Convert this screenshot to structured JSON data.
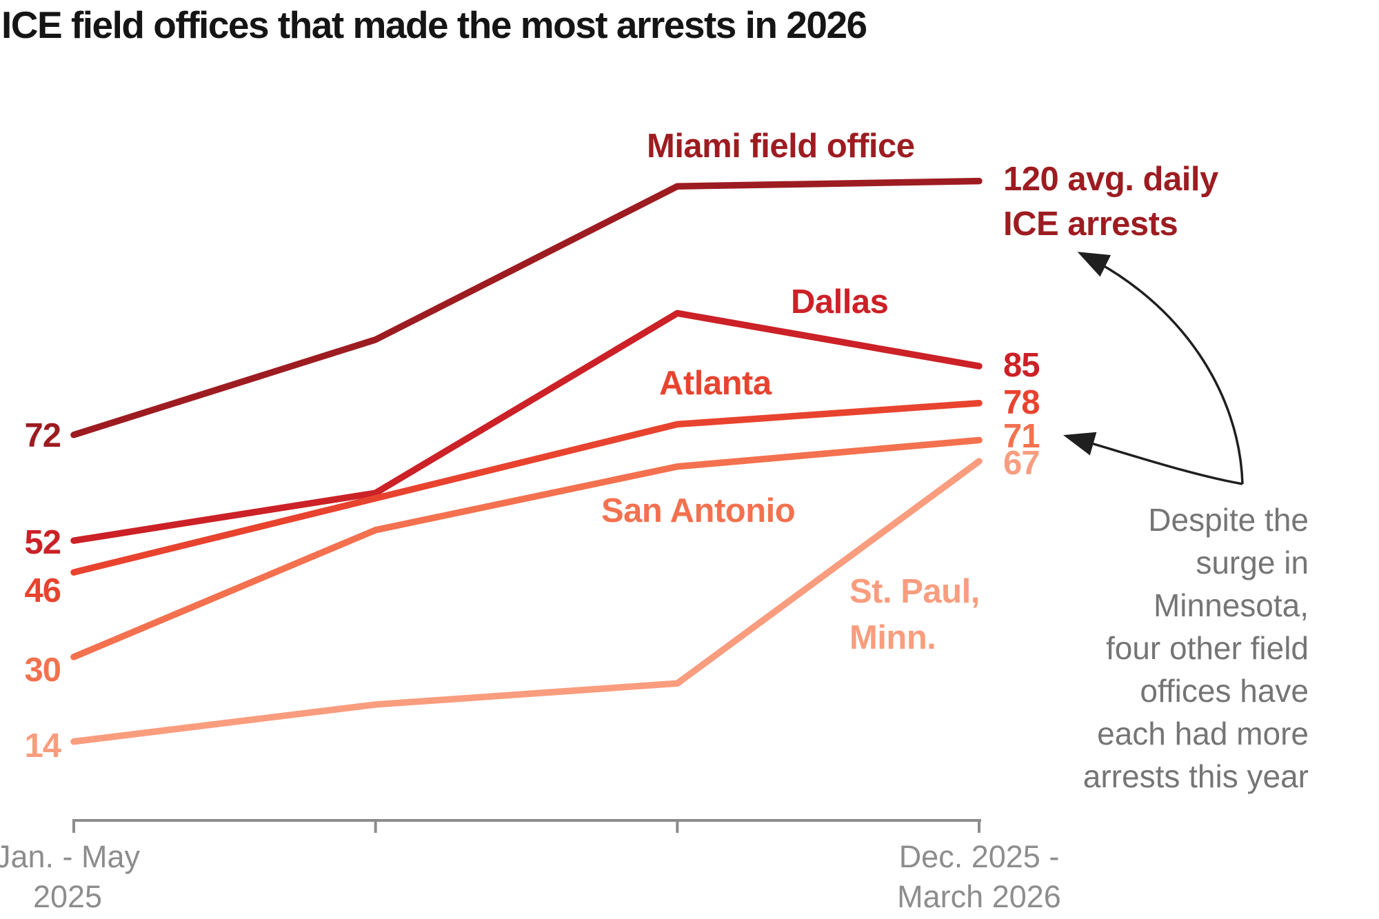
{
  "title": "ICE field offices that made the most arrests in 2026",
  "chart_data": {
    "type": "line",
    "x_axis": {
      "tick_count": 4,
      "first_tick_label": [
        "Jan. - May",
        "2025"
      ],
      "last_tick_label": [
        "Dec. 2025 -",
        "March 2026"
      ]
    },
    "ylabel": "avg. daily ICE arrests",
    "ylim": [
      0,
      130
    ],
    "grid": false,
    "legend_position": "inline-labels",
    "series": [
      {
        "name": "Miami field office",
        "color": "#9d1c21",
        "values": [
          72,
          90,
          119,
          120
        ]
      },
      {
        "name": "Dallas",
        "color": "#cb2127",
        "values": [
          52,
          61,
          95,
          85
        ]
      },
      {
        "name": "Atlanta",
        "color": "#e8432f",
        "values": [
          46,
          60,
          74,
          78
        ]
      },
      {
        "name": "San Antonio",
        "color": "#f3714f",
        "values": [
          30,
          54,
          66,
          71
        ]
      },
      {
        "name": "St. Paul, Minn.",
        "color": "#f99d7e",
        "values": [
          14,
          21,
          25,
          67
        ],
        "label_lines": [
          "St. Paul,",
          "Minn."
        ]
      }
    ]
  },
  "annotations": {
    "miami_end_label": {
      "line1": "120 avg. daily",
      "line2": "ICE arrests"
    },
    "note_lines": [
      "Despite the",
      "surge in",
      "Minnesota,",
      "four other field",
      "offices have",
      "each had more",
      "arrests this year"
    ]
  },
  "colors": {
    "axis": "#8c8c8c",
    "note_text": "#757575",
    "arrow": "#1f1f1f",
    "title_text": "#151515"
  }
}
